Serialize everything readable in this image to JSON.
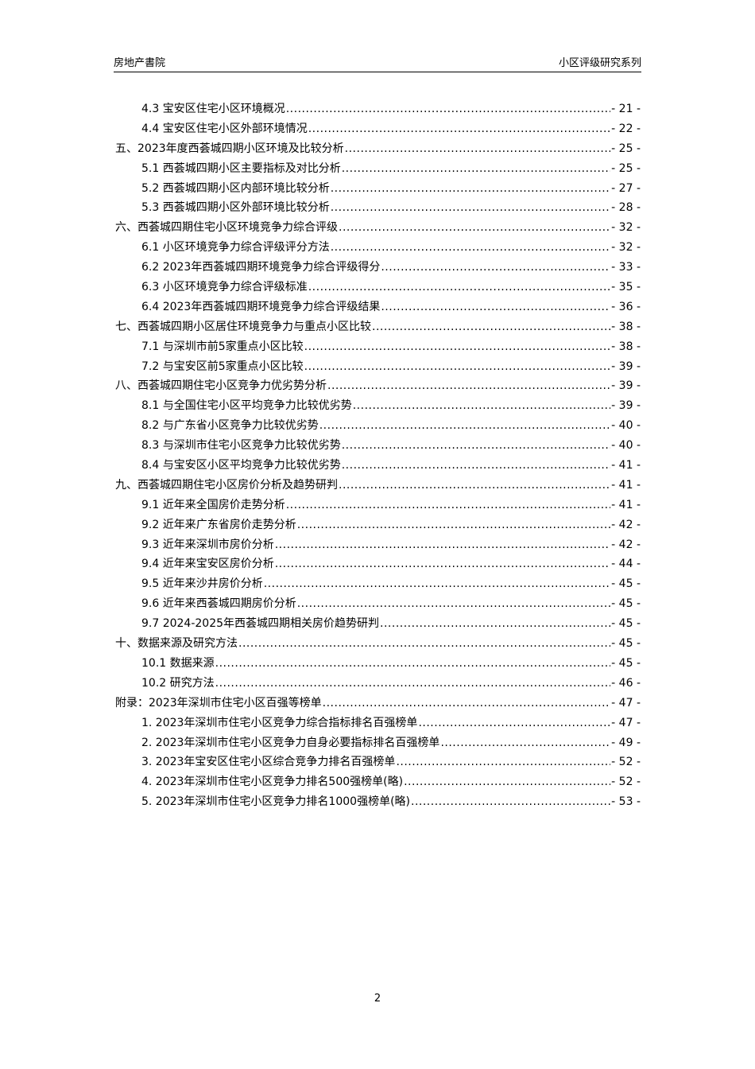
{
  "header": {
    "left": "房地产書院",
    "right": "小区评级研究系列"
  },
  "toc": [
    {
      "level": 2,
      "title": "4.3 宝安区住宅小区环境概况",
      "page": "- 21 -"
    },
    {
      "level": 2,
      "title": "4.4 宝安区住宅小区外部环境情况",
      "page": "- 22 -"
    },
    {
      "level": 1,
      "title": "五、2023年度西荟城四期小区环境及比较分析",
      "page": "- 25 -"
    },
    {
      "level": 2,
      "title": "5.1 西荟城四期小区主要指标及对比分析",
      "page": "- 25 -"
    },
    {
      "level": 2,
      "title": "5.2 西荟城四期小区内部环境比较分析",
      "page": "- 27 -"
    },
    {
      "level": 2,
      "title": "5.3 西荟城四期小区外部环境比较分析",
      "page": "- 28 -"
    },
    {
      "level": 1,
      "title": "六、西荟城四期住宅小区环境竞争力综合评级",
      "page": "- 32 -"
    },
    {
      "level": 2,
      "title": "6.1 小区环境竞争力综合评级评分方法",
      "page": "- 32 -"
    },
    {
      "level": 2,
      "title": "6.2 2023年西荟城四期环境竞争力综合评级得分",
      "page": "- 33 -"
    },
    {
      "level": 2,
      "title": "6.3 小区环境竞争力综合评级标准",
      "page": "- 35 -"
    },
    {
      "level": 2,
      "title": "6.4 2023年西荟城四期环境竞争力综合评级结果",
      "page": "- 36 -"
    },
    {
      "level": 1,
      "title": "七、西荟城四期小区居住环境竞争力与重点小区比较",
      "page": "- 38 -"
    },
    {
      "level": 2,
      "title": "7.1 与深圳市前5家重点小区比较",
      "page": "- 38 -"
    },
    {
      "level": 2,
      "title": "7.2 与宝安区前5家重点小区比较",
      "page": "- 39 -"
    },
    {
      "level": 1,
      "title": "八、西荟城四期住宅小区竞争力优劣势分析",
      "page": "- 39 -"
    },
    {
      "level": 2,
      "title": "8.1 与全国住宅小区平均竞争力比较优劣势",
      "page": "- 39 -"
    },
    {
      "level": 2,
      "title": "8.2 与广东省小区竞争力比较优劣势",
      "page": "- 40 -"
    },
    {
      "level": 2,
      "title": "8.3 与深圳市住宅小区竞争力比较优劣势",
      "page": "- 40 -"
    },
    {
      "level": 2,
      "title": "8.4 与宝安区小区平均竞争力比较优劣势",
      "page": "- 41 -"
    },
    {
      "level": 1,
      "title": "九、西荟城四期住宅小区房价分析及趋势研判",
      "page": "- 41 -"
    },
    {
      "level": 2,
      "title": "9.1 近年来全国房价走势分析",
      "page": "- 41 -"
    },
    {
      "level": 2,
      "title": "9.2 近年来广东省房价走势分析",
      "page": "- 42 -"
    },
    {
      "level": 2,
      "title": "9.3 近年来深圳市房价分析",
      "page": "- 42 -"
    },
    {
      "level": 2,
      "title": "9.4 近年来宝安区房价分析",
      "page": "- 44 -"
    },
    {
      "level": 2,
      "title": "9.5 近年来沙井房价分析",
      "page": "- 45 -"
    },
    {
      "level": 2,
      "title": "9.6 近年来西荟城四期房价分析",
      "page": "- 45 -"
    },
    {
      "level": 2,
      "title": "9.7 2024-2025年西荟城四期相关房价趋势研判",
      "page": "- 45 -"
    },
    {
      "level": 1,
      "title": "十、数据来源及研究方法",
      "page": "- 45 -"
    },
    {
      "level": 2,
      "title": "10.1 数据来源",
      "page": "- 45 -"
    },
    {
      "level": 2,
      "title": "10.2 研究方法",
      "page": "- 46 -"
    },
    {
      "level": 1,
      "title": "附录：2023年深圳市住宅小区百强等榜单",
      "page": "- 47 -"
    },
    {
      "level": 2,
      "title": "1. 2023年深圳市住宅小区竞争力综合指标排名百强榜单",
      "page": "- 47 -"
    },
    {
      "level": 2,
      "title": "2. 2023年深圳市住宅小区竞争力自身必要指标排名百强榜单",
      "page": "- 49 -"
    },
    {
      "level": 2,
      "title": "3. 2023年宝安区住宅小区综合竞争力排名百强榜单",
      "page": "- 52 -"
    },
    {
      "level": 2,
      "title": "4. 2023年深圳市住宅小区竞争力排名500强榜单(略)",
      "page": "- 52 -"
    },
    {
      "level": 2,
      "title": "5. 2023年深圳市住宅小区竞争力排名1000强榜单(略)",
      "page": "- 53 -"
    }
  ],
  "footer": {
    "page_number": "2"
  }
}
